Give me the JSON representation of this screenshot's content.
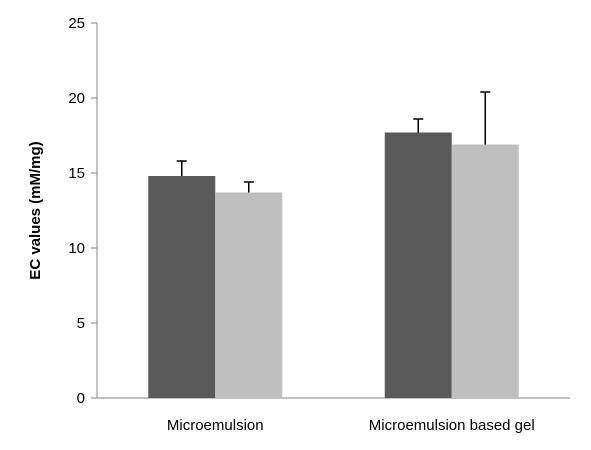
{
  "chart_data": {
    "type": "bar",
    "title": "",
    "xlabel": "",
    "ylabel": "EC values (mM/mg)",
    "categories": [
      "Microemulsion",
      "Microemulsion based gel"
    ],
    "series": [
      {
        "values": [
          14.8,
          17.7
        ],
        "errors": [
          1.0,
          0.9
        ],
        "color": "#595959"
      },
      {
        "values": [
          13.7,
          16.9
        ],
        "errors": [
          0.7,
          3.5
        ],
        "color": "#bfbfbf"
      }
    ],
    "ylim": [
      0,
      25
    ],
    "yticks": [
      0,
      5,
      10,
      15,
      20,
      25
    ],
    "grid": false,
    "legend": "none"
  }
}
